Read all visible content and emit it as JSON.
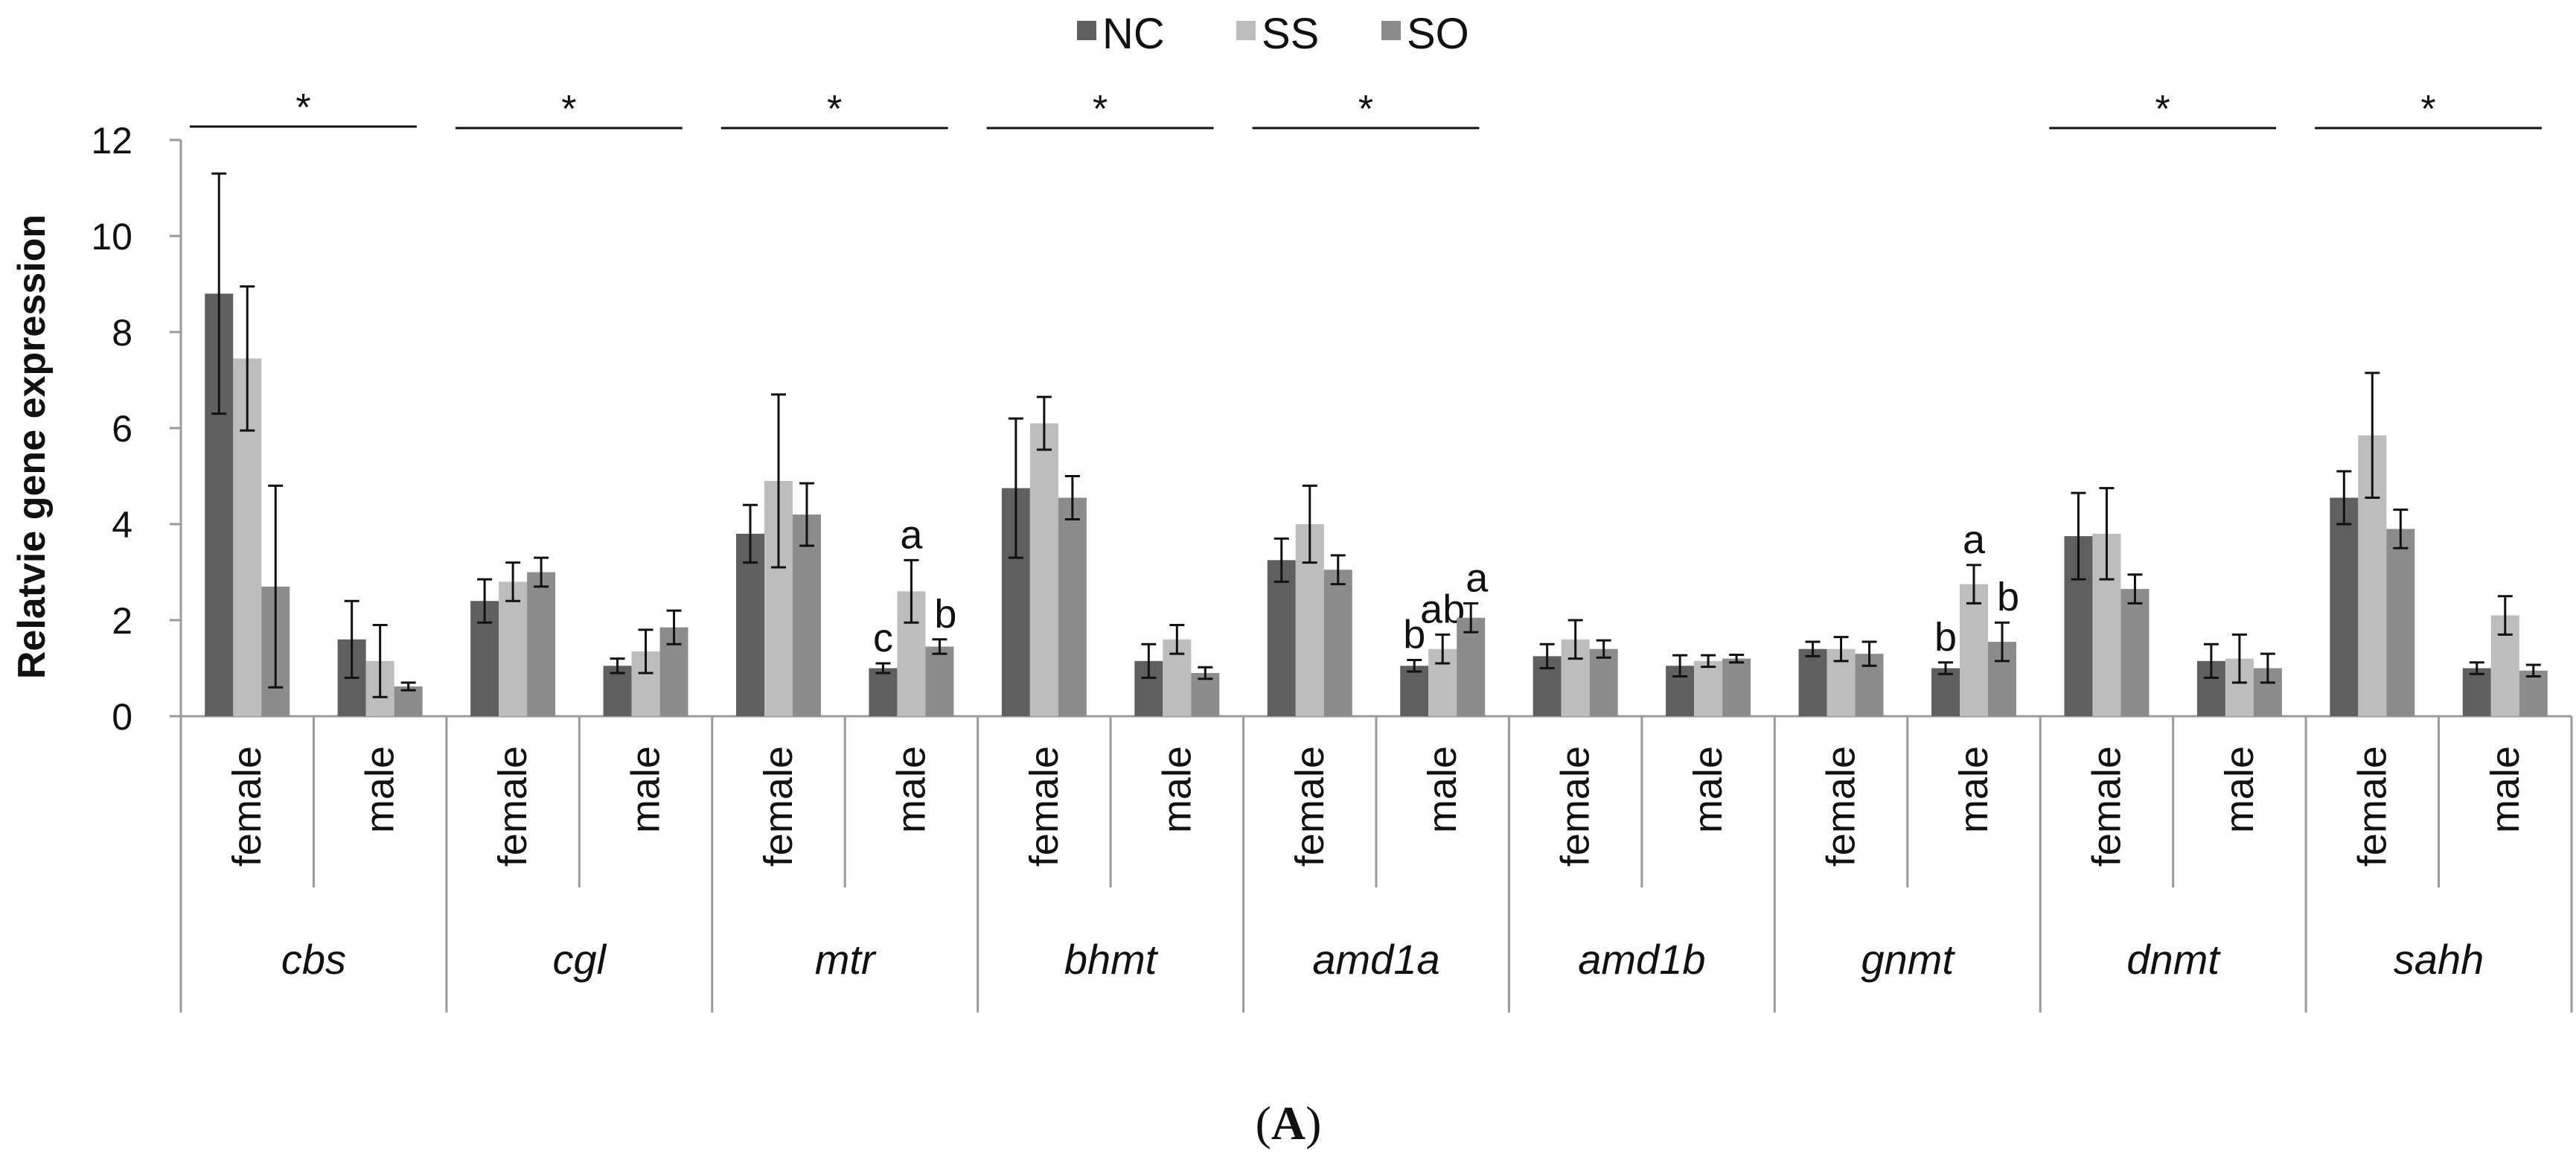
{
  "colors": {
    "NC": "#5f5f5f",
    "SS": "#bdbdbd",
    "SO": "#8c8c8c",
    "axis": "#9a9a9a",
    "ink": "#111111"
  },
  "chart_data": {
    "type": "bar",
    "panel_label_open": "(",
    "panel_label": "A",
    "panel_label_close": ")",
    "ylabel": "Relatvie gene expression",
    "ylim": [
      0,
      12
    ],
    "yticks": [
      0,
      2,
      4,
      6,
      8,
      10,
      12
    ],
    "series_names": [
      "NC",
      "SS",
      "SO"
    ],
    "legend": {
      "position": "top-center",
      "entries": [
        "NC",
        "SS",
        "SO"
      ]
    },
    "genes": [
      {
        "name": "cbs",
        "significance": "*",
        "groups": [
          {
            "sex": "female",
            "values": [
              8.8,
              7.45,
              2.7
            ],
            "errors": [
              2.5,
              1.5,
              2.1
            ],
            "letters": [
              "",
              "",
              ""
            ]
          },
          {
            "sex": "male",
            "values": [
              1.6,
              1.15,
              0.62
            ],
            "errors": [
              0.8,
              0.75,
              0.08
            ],
            "letters": [
              "",
              "",
              ""
            ]
          }
        ]
      },
      {
        "name": "cgl",
        "significance": "*",
        "groups": [
          {
            "sex": "female",
            "values": [
              2.4,
              2.8,
              3.0
            ],
            "errors": [
              0.45,
              0.4,
              0.3
            ],
            "letters": [
              "",
              "",
              ""
            ]
          },
          {
            "sex": "male",
            "values": [
              1.05,
              1.35,
              1.85
            ],
            "errors": [
              0.15,
              0.45,
              0.35
            ],
            "letters": [
              "",
              "",
              ""
            ]
          }
        ]
      },
      {
        "name": "mtr",
        "significance": "*",
        "groups": [
          {
            "sex": "female",
            "values": [
              3.8,
              4.9,
              4.2
            ],
            "errors": [
              0.6,
              1.8,
              0.65
            ],
            "letters": [
              "",
              "",
              ""
            ]
          },
          {
            "sex": "male",
            "values": [
              1.0,
              2.6,
              1.45
            ],
            "errors": [
              0.1,
              0.65,
              0.15
            ],
            "letters": [
              "c",
              "a",
              "b"
            ]
          }
        ]
      },
      {
        "name": "bhmt",
        "significance": "*",
        "groups": [
          {
            "sex": "female",
            "values": [
              4.75,
              6.1,
              4.55
            ],
            "errors": [
              1.45,
              0.55,
              0.45
            ],
            "letters": [
              "",
              "",
              ""
            ]
          },
          {
            "sex": "male",
            "values": [
              1.15,
              1.6,
              0.9
            ],
            "errors": [
              0.35,
              0.3,
              0.12
            ],
            "letters": [
              "",
              "",
              ""
            ]
          }
        ]
      },
      {
        "name": "amd1a",
        "significance": "*",
        "groups": [
          {
            "sex": "female",
            "values": [
              3.25,
              4.0,
              3.05
            ],
            "errors": [
              0.45,
              0.8,
              0.3
            ],
            "letters": [
              "",
              "",
              ""
            ]
          },
          {
            "sex": "male",
            "values": [
              1.05,
              1.4,
              2.05
            ],
            "errors": [
              0.12,
              0.3,
              0.3
            ],
            "letters": [
              "b",
              "ab",
              "a"
            ]
          }
        ]
      },
      {
        "name": "amd1b",
        "significance": "",
        "groups": [
          {
            "sex": "female",
            "values": [
              1.25,
              1.6,
              1.4
            ],
            "errors": [
              0.25,
              0.4,
              0.18
            ],
            "letters": [
              "",
              "",
              ""
            ]
          },
          {
            "sex": "male",
            "values": [
              1.05,
              1.15,
              1.2
            ],
            "errors": [
              0.22,
              0.12,
              0.08
            ],
            "letters": [
              "",
              "",
              ""
            ]
          }
        ]
      },
      {
        "name": "gnmt",
        "significance": "",
        "groups": [
          {
            "sex": "female",
            "values": [
              1.4,
              1.4,
              1.3
            ],
            "errors": [
              0.15,
              0.25,
              0.25
            ],
            "letters": [
              "",
              "",
              ""
            ]
          },
          {
            "sex": "male",
            "values": [
              1.0,
              2.75,
              1.55
            ],
            "errors": [
              0.12,
              0.4,
              0.4
            ],
            "letters": [
              "b",
              "a",
              "b"
            ]
          }
        ]
      },
      {
        "name": "dnmt",
        "significance": "*",
        "groups": [
          {
            "sex": "female",
            "values": [
              3.75,
              3.8,
              2.65
            ],
            "errors": [
              0.9,
              0.95,
              0.3
            ],
            "letters": [
              "",
              "",
              ""
            ]
          },
          {
            "sex": "male",
            "values": [
              1.15,
              1.2,
              1.0
            ],
            "errors": [
              0.35,
              0.5,
              0.3
            ],
            "letters": [
              "",
              "",
              ""
            ]
          }
        ]
      },
      {
        "name": "sahh",
        "significance": "*",
        "groups": [
          {
            "sex": "female",
            "values": [
              4.55,
              5.85,
              3.9
            ],
            "errors": [
              0.55,
              1.3,
              0.4
            ],
            "letters": [
              "",
              "",
              ""
            ]
          },
          {
            "sex": "male",
            "values": [
              1.0,
              2.1,
              0.95
            ],
            "errors": [
              0.12,
              0.4,
              0.12
            ],
            "letters": [
              "",
              "",
              ""
            ]
          }
        ]
      }
    ]
  }
}
